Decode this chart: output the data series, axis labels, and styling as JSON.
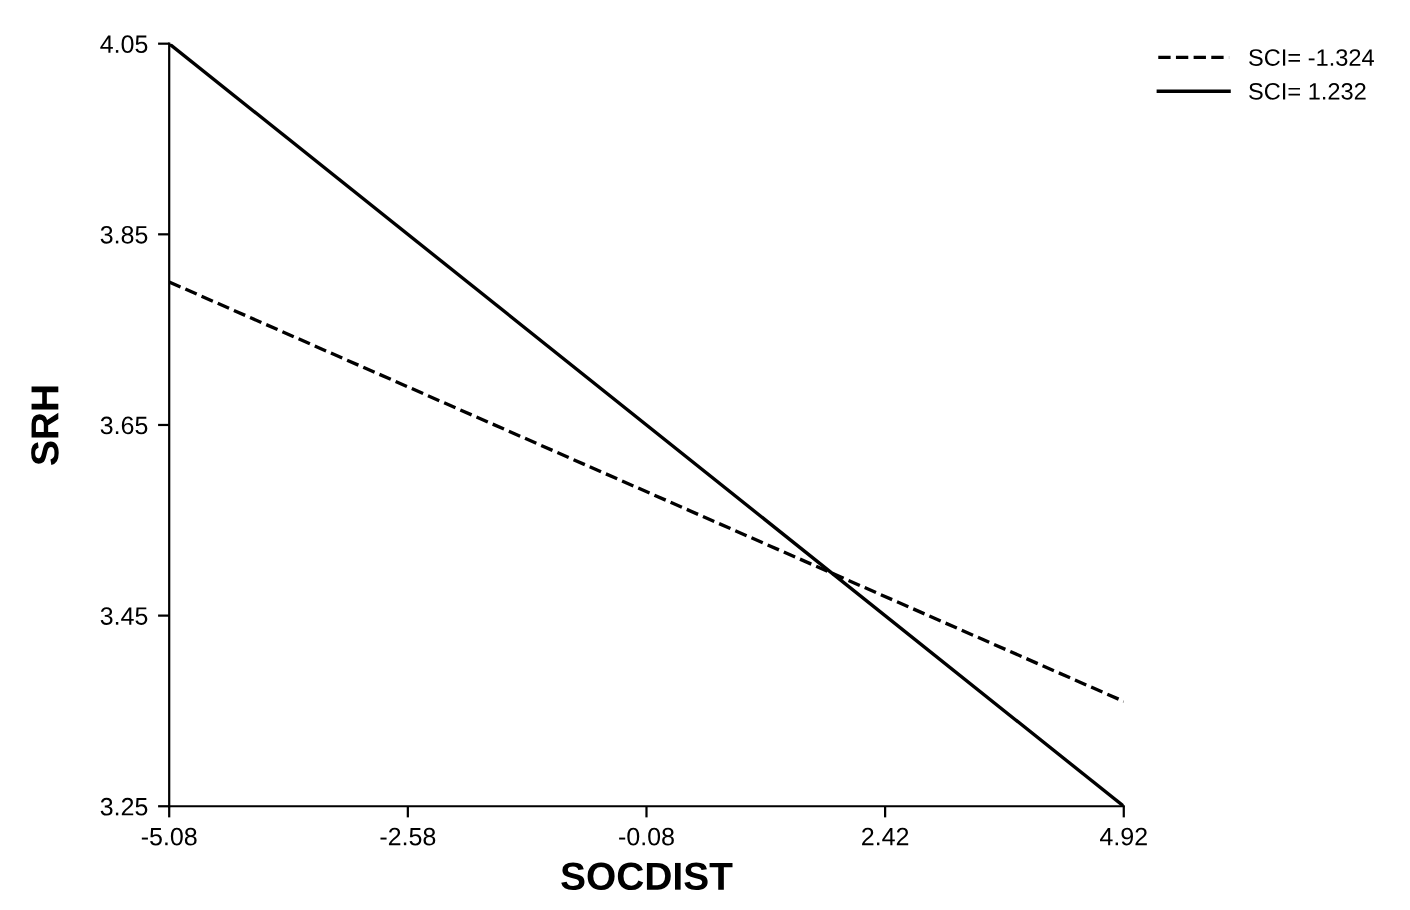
{
  "chart_data": {
    "type": "line",
    "xlabel": "SOCDIST",
    "ylabel": "SRH",
    "x": [
      -5.08,
      4.92
    ],
    "series": [
      {
        "name": "SCI= -1.324",
        "color": "#000000",
        "values": [
          3.8,
          3.36
        ],
        "line_style": "dashed"
      },
      {
        "name": "SCI= 1.232",
        "color": "#000000",
        "values": [
          4.05,
          3.25
        ],
        "line_style": "solid"
      }
    ],
    "xlim": [
      -5.08,
      4.92
    ],
    "xticks": [
      -5.08,
      -2.58,
      -0.08,
      2.42,
      4.92
    ],
    "ylim": [
      3.25,
      4.05
    ],
    "yticks": [
      3.25,
      3.45,
      3.65,
      3.85,
      4.05
    ],
    "grid": false,
    "legend": "top right",
    "marker": "none"
  }
}
